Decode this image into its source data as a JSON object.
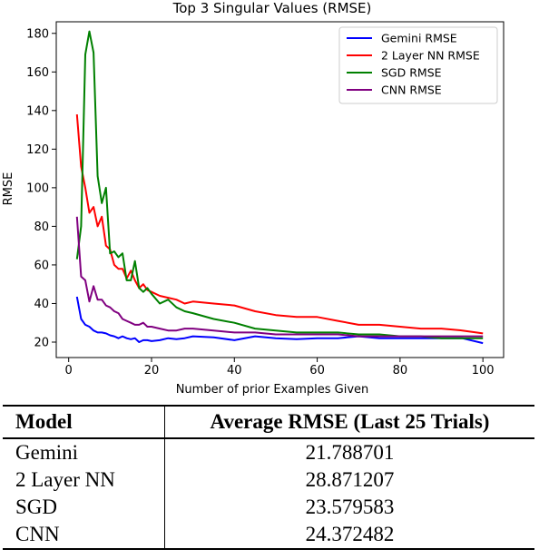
{
  "chart_data": {
    "type": "line",
    "title": "Top 3 Singular Values (RMSE)",
    "xlabel": "Number of prior Examples Given",
    "ylabel": "RMSE",
    "xlim": [
      -3,
      105
    ],
    "ylim": [
      12,
      186
    ],
    "xticks": [
      "0",
      "20",
      "40",
      "60",
      "80",
      "100"
    ],
    "yticks": [
      "20",
      "40",
      "60",
      "80",
      "100",
      "120",
      "140",
      "160",
      "180"
    ],
    "grid": false,
    "legend_position": "top-right",
    "series": [
      {
        "name": "Gemini RMSE",
        "color": "#0000ff",
        "x": [
          2,
          3,
          4,
          5,
          6,
          7,
          8,
          9,
          10,
          11,
          12,
          13,
          14,
          15,
          16,
          17,
          18,
          19,
          20,
          22,
          24,
          26,
          28,
          30,
          35,
          40,
          45,
          50,
          55,
          60,
          65,
          70,
          75,
          80,
          85,
          90,
          95,
          100
        ],
        "y": [
          43.5,
          32,
          29,
          28,
          26,
          25,
          25,
          24.5,
          23.5,
          23,
          22,
          23,
          22,
          21.5,
          22,
          20,
          21,
          21,
          20.5,
          21,
          22,
          21.5,
          22,
          23,
          22.5,
          21,
          23,
          22,
          21.5,
          22,
          22,
          23,
          22,
          22,
          22,
          22,
          22,
          19.5
        ]
      },
      {
        "name": "2 Layer NN RMSE",
        "color": "#ff0000",
        "x": [
          2,
          3,
          4,
          5,
          6,
          7,
          8,
          9,
          10,
          11,
          12,
          13,
          14,
          15,
          16,
          17,
          18,
          19,
          20,
          22,
          24,
          26,
          28,
          30,
          35,
          40,
          45,
          50,
          55,
          60,
          65,
          70,
          75,
          80,
          85,
          90,
          95,
          100
        ],
        "y": [
          138,
          111,
          100,
          87,
          90,
          80,
          85,
          70,
          68,
          60,
          58,
          58,
          53,
          57,
          52,
          48,
          50,
          47,
          46,
          44,
          43,
          42,
          40,
          41,
          40,
          39,
          36,
          34,
          33,
          33,
          31,
          29,
          29,
          28,
          27,
          27,
          26,
          24.5
        ]
      },
      {
        "name": "SGD RMSE",
        "color": "#008000",
        "x": [
          2,
          3,
          4,
          5,
          6,
          7,
          8,
          9,
          10,
          11,
          12,
          13,
          14,
          15,
          16,
          17,
          18,
          19,
          20,
          22,
          24,
          26,
          28,
          30,
          35,
          40,
          45,
          50,
          55,
          60,
          65,
          70,
          75,
          80,
          85,
          90,
          95,
          100
        ],
        "y": [
          63,
          80,
          169,
          181,
          170,
          106,
          92,
          100,
          66,
          67,
          64,
          66,
          52,
          52,
          62,
          48,
          46,
          48,
          45,
          40,
          42,
          38,
          36,
          35,
          32,
          30,
          27,
          26,
          25,
          25,
          25,
          24,
          24,
          23,
          23,
          22,
          22,
          22
        ]
      },
      {
        "name": "CNN RMSE",
        "color": "#800080",
        "x": [
          2,
          3,
          4,
          5,
          6,
          7,
          8,
          9,
          10,
          11,
          12,
          13,
          14,
          15,
          16,
          17,
          18,
          19,
          20,
          22,
          24,
          26,
          28,
          30,
          35,
          40,
          45,
          50,
          55,
          60,
          65,
          70,
          75,
          80,
          85,
          90,
          95,
          100
        ],
        "y": [
          85,
          54,
          52,
          41,
          49,
          42,
          42,
          39,
          38,
          36,
          35,
          32,
          31,
          30,
          29,
          29,
          30,
          28,
          28,
          27,
          26,
          26,
          27,
          27,
          26,
          25,
          25,
          24,
          24,
          24,
          24,
          23,
          23,
          23,
          23,
          23,
          23,
          23
        ]
      }
    ]
  },
  "table": {
    "headers": [
      "Model",
      "Average RMSE (Last 25 Trials)"
    ],
    "rows": [
      [
        "Gemini",
        "21.788701"
      ],
      [
        "2 Layer NN",
        "28.871207"
      ],
      [
        "SGD",
        "23.579583"
      ],
      [
        "CNN",
        "24.372482"
      ]
    ]
  }
}
